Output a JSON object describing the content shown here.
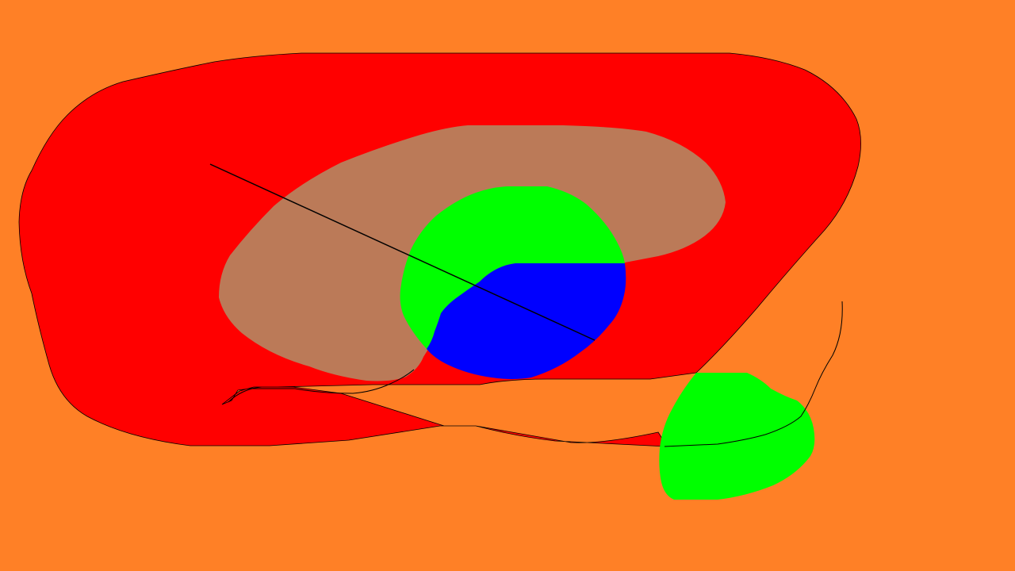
{
  "colors": {
    "background": "#ff8026",
    "outer_blob": "#ff0000",
    "inner_blob": "#bb7a58",
    "circle_top": "#00ff00",
    "circle_bottom": "#0000ff",
    "small_blob": "#00ff00",
    "outline": "#000000"
  },
  "shapes": [
    {
      "name": "outer-red-blob",
      "kind": "filled-region",
      "color": "#ff0000"
    },
    {
      "name": "inner-brown-blob",
      "kind": "filled-region",
      "color": "#bb7a58"
    },
    {
      "name": "center-circle-green-half",
      "kind": "filled-region",
      "color": "#00ff00"
    },
    {
      "name": "center-circle-blue-half",
      "kind": "filled-region",
      "color": "#0000ff"
    },
    {
      "name": "lower-right-green-blob",
      "kind": "filled-region",
      "color": "#00ff00"
    },
    {
      "name": "diagonal-line",
      "kind": "stroke",
      "color": "#000000"
    },
    {
      "name": "bottom-wavy-line",
      "kind": "stroke",
      "color": "#000000"
    },
    {
      "name": "right-curve-line",
      "kind": "stroke",
      "color": "#000000"
    }
  ]
}
